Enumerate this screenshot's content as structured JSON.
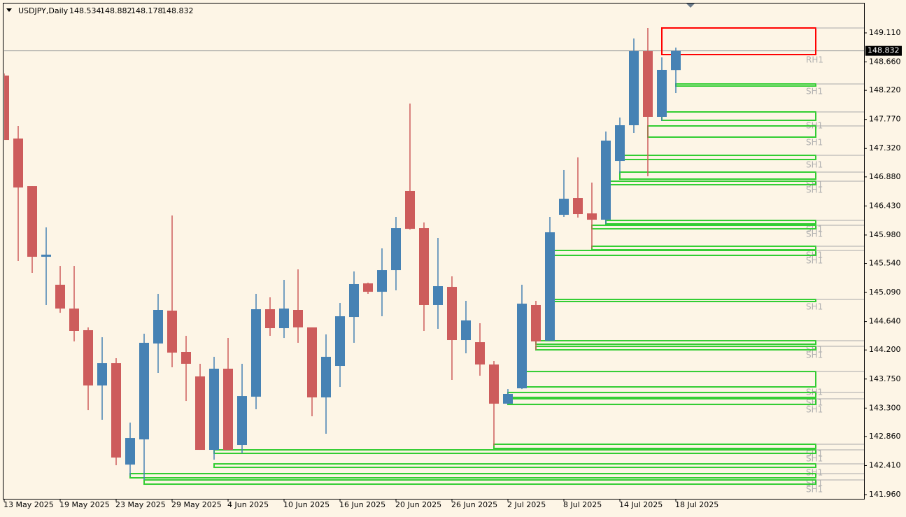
{
  "chart_data": {
    "type": "candlestick",
    "title": "USDJPY,Daily",
    "categories": [
      "13 May 2025",
      null,
      null,
      null,
      "19 May 2025",
      null,
      null,
      null,
      "23 May 2025",
      null,
      null,
      null,
      "29 May 2025",
      null,
      null,
      null,
      "4 Jun 2025",
      null,
      null,
      null,
      "10 Jun 2025",
      null,
      null,
      null,
      "16 Jun 2025",
      null,
      null,
      null,
      "20 Jun 2025",
      null,
      null,
      null,
      "26 Jun 2025",
      null,
      null,
      null,
      "2 Jul 2025",
      null,
      null,
      null,
      "8 Jul 2025",
      null,
      null,
      null,
      "14 Jul 2025",
      null,
      null,
      null,
      "18 Jul 2025"
    ],
    "open": [
      148.449,
      147.474,
      146.737,
      145.643,
      145.21,
      144.841,
      144.506,
      143.65,
      143.996,
      142.425,
      142.815,
      144.3,
      144.809,
      144.17,
      143.79,
      142.653,
      143.91,
      142.729,
      143.476,
      144.831,
      144.538,
      144.82,
      144.549,
      143.465,
      143.953,
      144.711,
      145.231,
      145.101,
      145.437,
      146.662,
      146.087,
      144.896,
      145.177,
      144.354,
      144.321,
      143.975,
      143.368,
      143.606,
      144.896,
      144.343,
      146.293,
      146.553,
      146.315,
      146.217,
      147.127,
      147.68,
      148.828,
      147.81,
      148.534
    ],
    "high": [
      148.482,
      147.669,
      146.737,
      146.098,
      145.502,
      145.502,
      144.549,
      144.397,
      144.072,
      143.075,
      144.451,
      145.069,
      146.282,
      144.419,
      143.986,
      144.094,
      144.386,
      143.986,
      145.069,
      145.015,
      145.286,
      145.448,
      144.549,
      144.441,
      144.928,
      145.416,
      145.242,
      145.773,
      146.261,
      148.016,
      146.174,
      145.936,
      145.34,
      144.961,
      144.614,
      144.029,
      143.595,
      145.21,
      144.961,
      146.261,
      146.987,
      147.182,
      146.792,
      147.582,
      147.799,
      149.023,
      149.186,
      148.731,
      148.882
    ],
    "low": [
      147.452,
      145.578,
      145.394,
      144.896,
      144.776,
      144.332,
      143.27,
      143.119,
      142.415,
      142.252,
      142.187,
      143.845,
      143.931,
      143.411,
      142.653,
      142.501,
      142.653,
      142.599,
      143.281,
      144.419,
      144.386,
      144.311,
      143.173,
      142.902,
      143.628,
      144.311,
      145.069,
      144.722,
      145.123,
      146.065,
      144.495,
      144.527,
      143.736,
      144.148,
      143.801,
      142.718,
      143.357,
      143.595,
      144.202,
      144.343,
      146.261,
      146.25,
      145.773,
      146.152,
      146.932,
      147.561,
      146.889,
      147.745,
      148.178
    ],
    "close": [
      147.452,
      146.716,
      145.643,
      145.676,
      144.841,
      144.495,
      143.65,
      143.996,
      142.534,
      142.837,
      144.311,
      144.82,
      144.159,
      143.986,
      142.653,
      143.91,
      142.653,
      143.487,
      144.831,
      144.538,
      144.841,
      144.549,
      143.465,
      144.094,
      144.722,
      145.221,
      145.101,
      145.437,
      146.087,
      146.076,
      144.896,
      145.188,
      144.354,
      144.657,
      143.975,
      143.368,
      143.52,
      144.917,
      144.332,
      146.022,
      146.542,
      146.304,
      146.217,
      147.442,
      147.68,
      148.828,
      147.81,
      148.536,
      148.832
    ],
    "up_color": "#4682b4",
    "down_color": "#cd5c5c",
    "ylim": [
      141.895,
      149.565
    ],
    "yticks": [
      {
        "value": 149.11,
        "label": "149.110"
      },
      {
        "value": 148.66,
        "label": "148.660"
      },
      {
        "value": 148.22,
        "label": "148.220"
      },
      {
        "value": 147.77,
        "label": "147.770"
      },
      {
        "value": 147.32,
        "label": "147.320"
      },
      {
        "value": 146.88,
        "label": "146.880"
      },
      {
        "value": 146.43,
        "label": "146.430"
      },
      {
        "value": 145.98,
        "label": "145.980"
      },
      {
        "value": 145.54,
        "label": "145.540"
      },
      {
        "value": 145.09,
        "label": "145.090"
      },
      {
        "value": 144.64,
        "label": "144.640"
      },
      {
        "value": 144.2,
        "label": "144.200"
      },
      {
        "value": 143.75,
        "label": "143.750"
      },
      {
        "value": 143.3,
        "label": "143.300"
      },
      {
        "value": 142.86,
        "label": "142.860"
      },
      {
        "value": 142.41,
        "label": "142.410"
      },
      {
        "value": 141.96,
        "label": "141.960"
      }
    ],
    "zones": [
      {
        "label": "RH1",
        "color": "#ff0000",
        "top": 149.186,
        "bottom": 148.774,
        "start": 47
      },
      {
        "label": "SH1",
        "color": "#32cd32",
        "top": 148.319,
        "bottom": 148.287,
        "start": 48
      },
      {
        "label": "SH1",
        "color": "#32cd32",
        "top": 147.886,
        "bottom": 147.756,
        "start": 47
      },
      {
        "label": "SH1",
        "color": "#32cd32",
        "top": 147.669,
        "bottom": 147.496,
        "start": 46
      },
      {
        "label": "SH1",
        "color": "#32cd32",
        "top": 147.214,
        "bottom": 147.149,
        "start": 44
      },
      {
        "label": "SH1",
        "color": "#32cd32",
        "top": 146.954,
        "bottom": 146.846,
        "start": 44
      },
      {
        "label": "SH1",
        "color": "#32cd32",
        "top": 146.813,
        "bottom": 146.759,
        "start": 43
      },
      {
        "label": "SH1",
        "color": "#32cd32",
        "top": 146.206,
        "bottom": 146.152,
        "start": 43
      },
      {
        "label": "SH1",
        "color": "#32cd32",
        "top": 146.131,
        "bottom": 146.076,
        "start": 42
      },
      {
        "label": "SH1",
        "color": "#32cd32",
        "top": 145.806,
        "bottom": 145.751,
        "start": 42
      },
      {
        "label": "SH1",
        "color": "#32cd32",
        "top": 145.741,
        "bottom": 145.665,
        "start": 39
      },
      {
        "label": "SH1",
        "color": "#32cd32",
        "top": 144.982,
        "bottom": 144.95,
        "start": 39
      },
      {
        "label": "SH1",
        "color": "#32cd32",
        "top": 144.343,
        "bottom": 144.289,
        "start": 38
      },
      {
        "label": "SH1",
        "color": "#32cd32",
        "top": 144.256,
        "bottom": 144.202,
        "start": 38
      },
      {
        "label": "SH1",
        "color": "#32cd32",
        "top": 143.866,
        "bottom": 143.628,
        "start": 37
      },
      {
        "label": "SH1",
        "color": "#32cd32",
        "top": 143.541,
        "bottom": 143.465,
        "start": 36
      },
      {
        "label": "SH1",
        "color": "#32cd32",
        "top": 143.444,
        "bottom": 143.357,
        "start": 36
      },
      {
        "label": "SH1",
        "color": "#32cd32",
        "top": 142.74,
        "bottom": 142.675,
        "start": 35
      },
      {
        "label": "SH1",
        "color": "#32cd32",
        "top": 142.653,
        "bottom": 142.599,
        "start": 15
      },
      {
        "label": "SH1",
        "color": "#32cd32",
        "top": 142.436,
        "bottom": 142.382,
        "start": 15
      },
      {
        "label": "SH1",
        "color": "#32cd32",
        "top": 142.285,
        "bottom": 142.22,
        "start": 9
      },
      {
        "label": "SH1",
        "color": "#32cd32",
        "top": 142.187,
        "bottom": 142.122,
        "start": 10
      }
    ]
  }
}
